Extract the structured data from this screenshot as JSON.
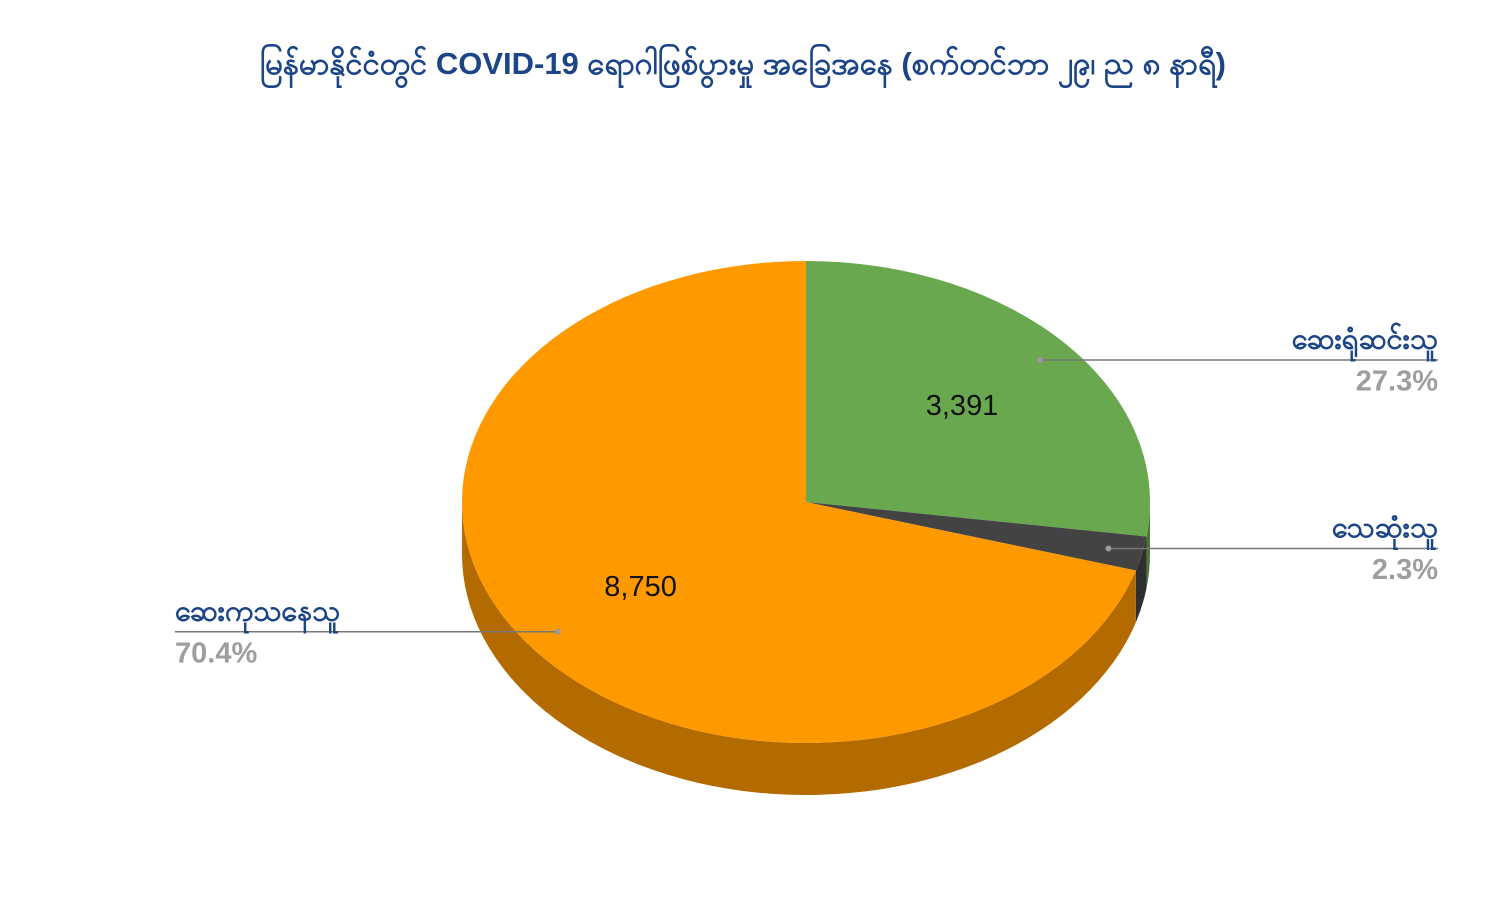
{
  "chart_data": {
    "type": "pie3d",
    "title": "မြန်မာနိုင်ငံတွင် COVID-19 ရောဂါဖြစ်ပွားမှု အခြေအနေ (စက်တင်ဘာ ၂၉၊ ည ၈ နာရီ)",
    "categories": [
      "ဆေးရုံဆင်းသူ",
      "သေဆုံးသူ",
      "ဆေးကုသနေသူ"
    ],
    "values": [
      3391,
      286,
      8750
    ],
    "value_labels": [
      "3,391",
      null,
      "8,750"
    ],
    "percent_labels": [
      "27.3%",
      "2.3%",
      "70.4%"
    ],
    "colors": [
      "#6aa84f",
      "#434343",
      "#ff9900"
    ]
  }
}
